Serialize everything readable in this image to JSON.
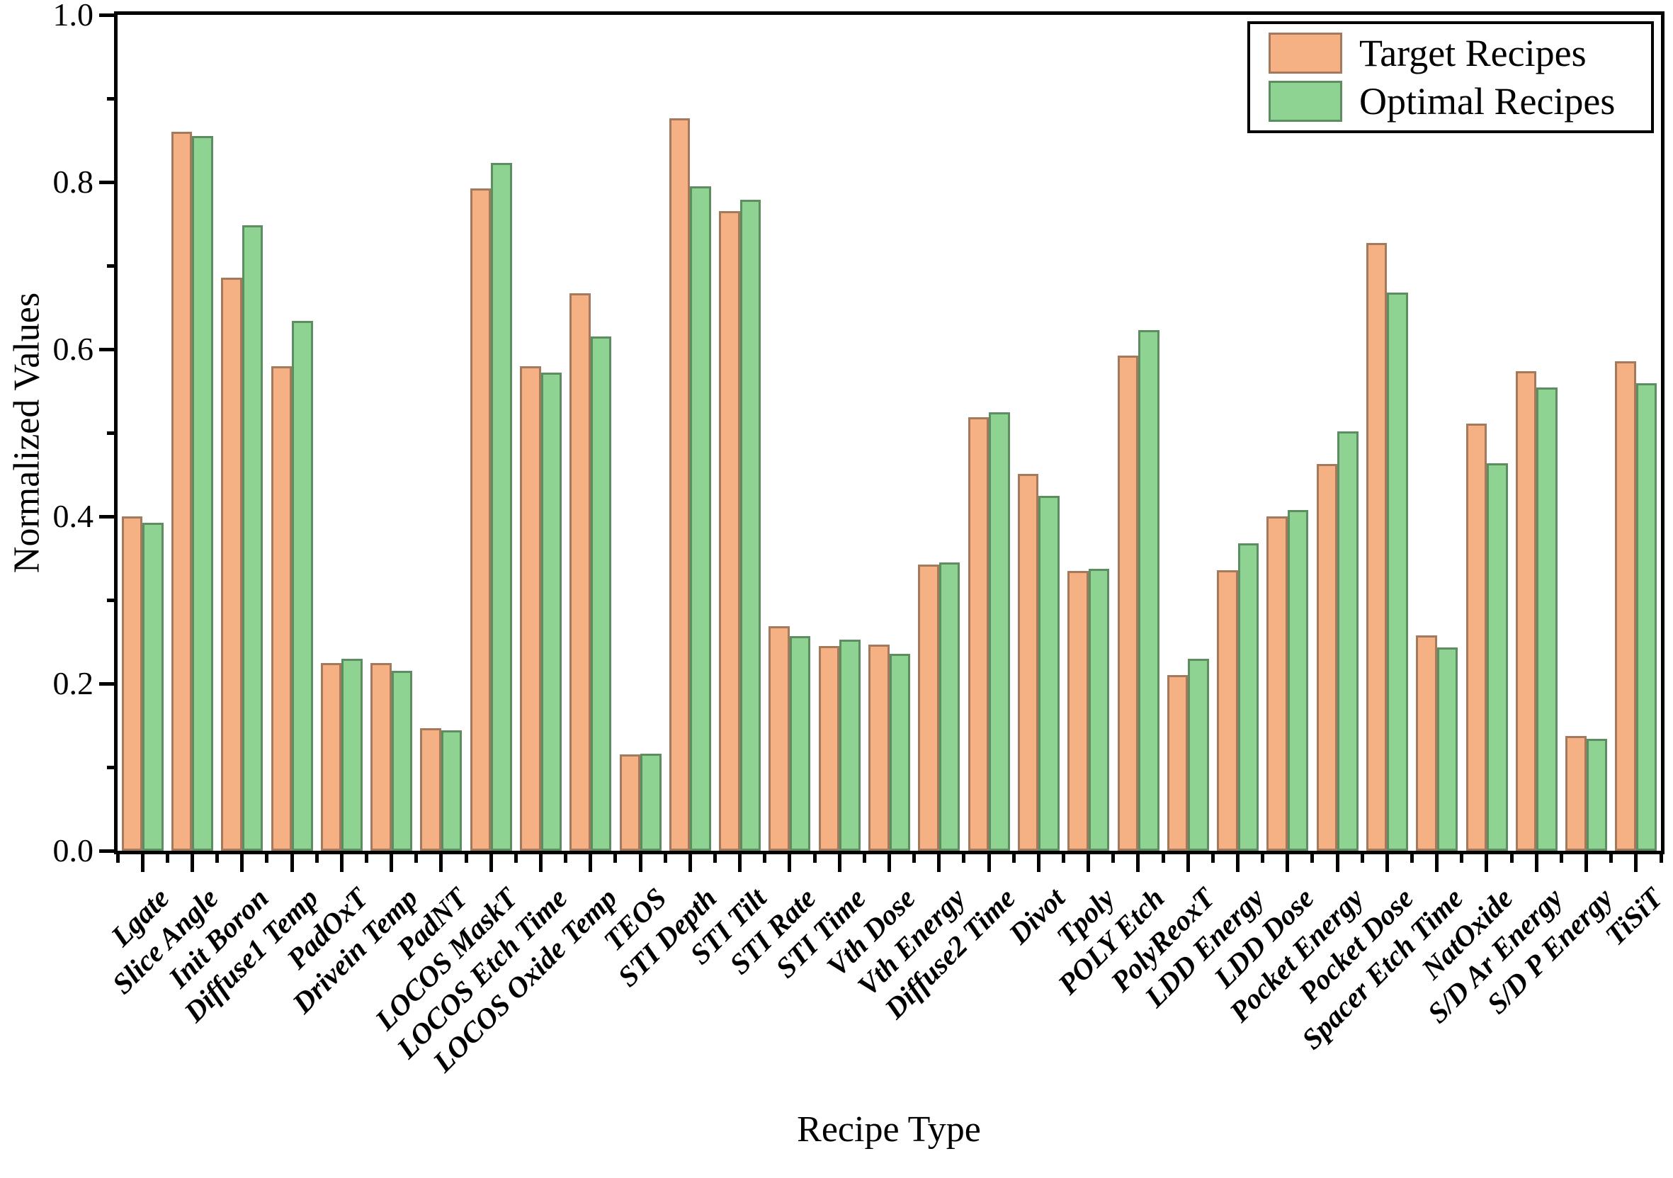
{
  "chart_data": {
    "type": "bar",
    "title": "",
    "xlabel": "Recipe Type",
    "ylabel": "Normalized Values",
    "ylim": [
      0.0,
      1.0
    ],
    "y_major_ticks": [
      0.0,
      0.2,
      0.4,
      0.6,
      0.8,
      1.0
    ],
    "y_minor_step": 0.1,
    "grid": false,
    "legend_position": "top-right",
    "frame_color": "#000000",
    "categories": [
      "Lgate",
      "Slice Angle",
      "Init Boron",
      "Diffuse1 Temp",
      "PadOxT",
      "Drivein Temp",
      "PadNT",
      "LOCOS MaskT",
      "LOCOS Etch Time",
      "LOCOS Oxide Temp",
      "TEOS",
      "STI Depth",
      "STI Tilt",
      "STI Rate",
      "STI Time",
      "Vth Dose",
      "Vth Energy",
      "Diffuse2 Time",
      "Divot",
      "Tpoly",
      "POLY Etch",
      "PolyReoxT",
      "LDD Energy",
      "LDD Dose",
      "Pocket Energy",
      "Pocket Dose",
      "Spacer Etch Time",
      "NatOxide",
      "S/D Ar Energy",
      "S/D P Energy",
      "TiSiT"
    ],
    "series": [
      {
        "name": "Target Recipes",
        "color": "#F5B183",
        "border_color": "#A5795B",
        "values": [
          0.4,
          0.86,
          0.686,
          0.58,
          0.225,
          0.225,
          0.147,
          0.792,
          0.58,
          0.667,
          0.115,
          0.876,
          0.765,
          0.269,
          0.245,
          0.247,
          0.342,
          0.519,
          0.451,
          0.335,
          0.592,
          0.21,
          0.336,
          0.4,
          0.463,
          0.727,
          0.258,
          0.511,
          0.574,
          0.137,
          0.586
        ]
      },
      {
        "name": "Optimal Recipes",
        "color": "#8FD392",
        "border_color": "#5C8E62",
        "values": [
          0.392,
          0.855,
          0.748,
          0.634,
          0.23,
          0.215,
          0.144,
          0.823,
          0.572,
          0.615,
          0.116,
          0.795,
          0.779,
          0.257,
          0.253,
          0.236,
          0.345,
          0.525,
          0.425,
          0.337,
          0.623,
          0.23,
          0.368,
          0.408,
          0.502,
          0.668,
          0.243,
          0.464,
          0.554,
          0.134,
          0.559
        ]
      }
    ]
  }
}
